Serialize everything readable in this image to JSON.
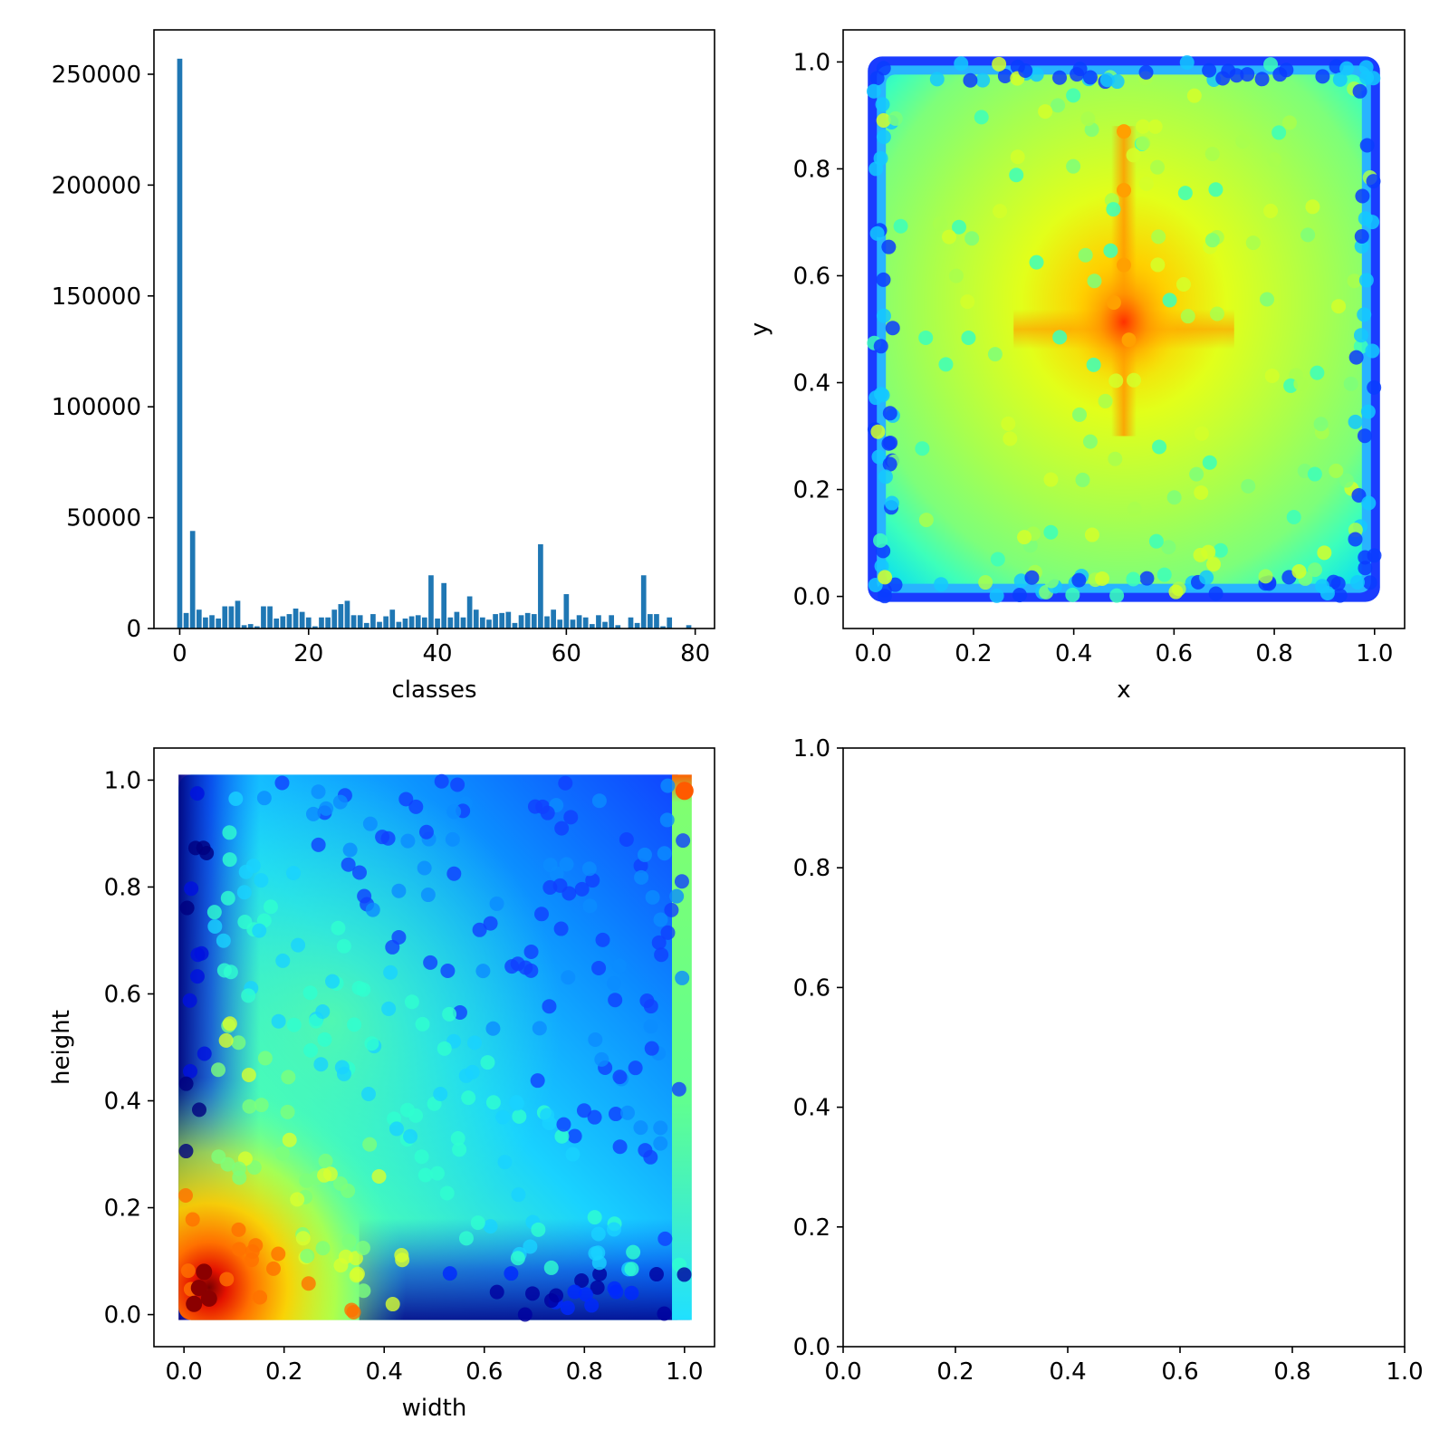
{
  "chart_data": [
    {
      "id": "classes-histogram",
      "type": "bar",
      "xlabel": "classes",
      "ylabel": "",
      "xlim": [
        -4,
        83
      ],
      "ylim": [
        0,
        270000
      ],
      "xticks": [
        0,
        20,
        40,
        60,
        80
      ],
      "yticks": [
        0,
        50000,
        100000,
        150000,
        200000,
        250000
      ],
      "color": "#1f77b4",
      "categories": [
        0,
        1,
        2,
        3,
        4,
        5,
        6,
        7,
        8,
        9,
        10,
        11,
        12,
        13,
        14,
        15,
        16,
        17,
        18,
        19,
        20,
        21,
        22,
        23,
        24,
        25,
        26,
        27,
        28,
        29,
        30,
        31,
        32,
        33,
        34,
        35,
        36,
        37,
        38,
        39,
        40,
        41,
        42,
        43,
        44,
        45,
        46,
        47,
        48,
        49,
        50,
        51,
        52,
        53,
        54,
        55,
        56,
        57,
        58,
        59,
        60,
        61,
        62,
        63,
        64,
        65,
        66,
        67,
        68,
        69,
        70,
        71,
        72,
        73,
        74,
        75,
        76,
        77,
        78,
        79
      ],
      "values": [
        257000,
        7000,
        44000,
        8500,
        5000,
        6000,
        4500,
        10000,
        10000,
        12500,
        1500,
        2000,
        1000,
        10000,
        10000,
        4500,
        5500,
        6500,
        9000,
        7500,
        5000,
        1000,
        5000,
        5000,
        8500,
        11000,
        12500,
        6000,
        6000,
        2500,
        6500,
        3000,
        5500,
        8500,
        3000,
        4500,
        5500,
        6000,
        5000,
        24000,
        4500,
        20500,
        5000,
        7500,
        5000,
        14500,
        8500,
        5000,
        4000,
        6500,
        7000,
        7500,
        2500,
        6000,
        7000,
        6500,
        38000,
        5500,
        8500,
        4000,
        15500,
        4000,
        6000,
        5000,
        2000,
        6000,
        3000,
        6000,
        1500,
        0,
        5000,
        2500,
        24000,
        6500,
        6500,
        1000,
        5000,
        0,
        0,
        1500
      ],
      "grid": false
    },
    {
      "id": "xy-scatter",
      "type": "scatter",
      "xlabel": "x",
      "ylabel": "y",
      "xlim": [
        -0.06,
        1.06
      ],
      "ylim": [
        -0.06,
        1.06
      ],
      "xticks": [
        "0.0",
        "0.2",
        "0.4",
        "0.6",
        "0.8",
        "1.0"
      ],
      "yticks": [
        "0.0",
        "0.2",
        "0.4",
        "0.6",
        "0.8",
        "1.0"
      ],
      "colormap": "jet",
      "description_density": "uniform over unit square, density peak near (0.5, 0.5), lower density at the edges",
      "grid": false
    },
    {
      "id": "wh-scatter",
      "type": "scatter",
      "xlabel": "width",
      "ylabel": "height",
      "xlim": [
        -0.06,
        1.06
      ],
      "ylim": [
        -0.06,
        1.06
      ],
      "xticks": [
        "0.0",
        "0.2",
        "0.4",
        "0.6",
        "0.8",
        "1.0"
      ],
      "yticks": [
        "0.0",
        "0.2",
        "0.4",
        "0.6",
        "0.8",
        "1.0"
      ],
      "colormap": "jet",
      "description_density": "densest near (0.05, 0.05), sparse toward large width and height",
      "grid": false
    },
    {
      "id": "empty-axes",
      "type": "scatter",
      "xlabel": "",
      "ylabel": "",
      "xlim": [
        0,
        1
      ],
      "ylim": [
        0,
        1
      ],
      "xticks": [
        "0.0",
        "0.2",
        "0.4",
        "0.6",
        "0.8",
        "1.0"
      ],
      "yticks": [
        "0.0",
        "0.2",
        "0.4",
        "0.6",
        "0.8",
        "1.0"
      ],
      "grid": false
    }
  ]
}
